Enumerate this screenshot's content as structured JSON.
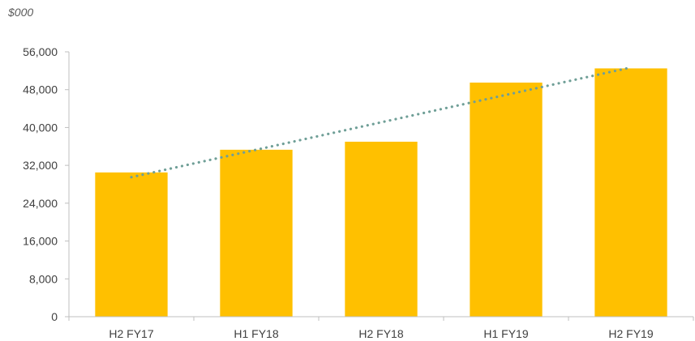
{
  "chart_data": {
    "type": "bar",
    "unit_label": "$000",
    "categories": [
      "H2 FY17",
      "H1 FY18",
      "H2 FY18",
      "H1 FY19",
      "H2 FY19"
    ],
    "values": [
      30500,
      35300,
      37000,
      49500,
      52500
    ],
    "trendline": {
      "style": "dotted",
      "start_value": 29500,
      "end_value": 52700
    },
    "ylim": [
      0,
      56000
    ],
    "yticks": [
      0,
      8000,
      16000,
      24000,
      32000,
      40000,
      48000,
      56000
    ],
    "ytick_labels": [
      "0",
      "8,000",
      "16,000",
      "24,000",
      "32,000",
      "40,000",
      "48,000",
      "56,000"
    ],
    "grid": false,
    "colors": {
      "bar": "#FFC000",
      "trendline": "#6F9F97",
      "axis": "#BFBFBF",
      "text": "#404040"
    }
  }
}
